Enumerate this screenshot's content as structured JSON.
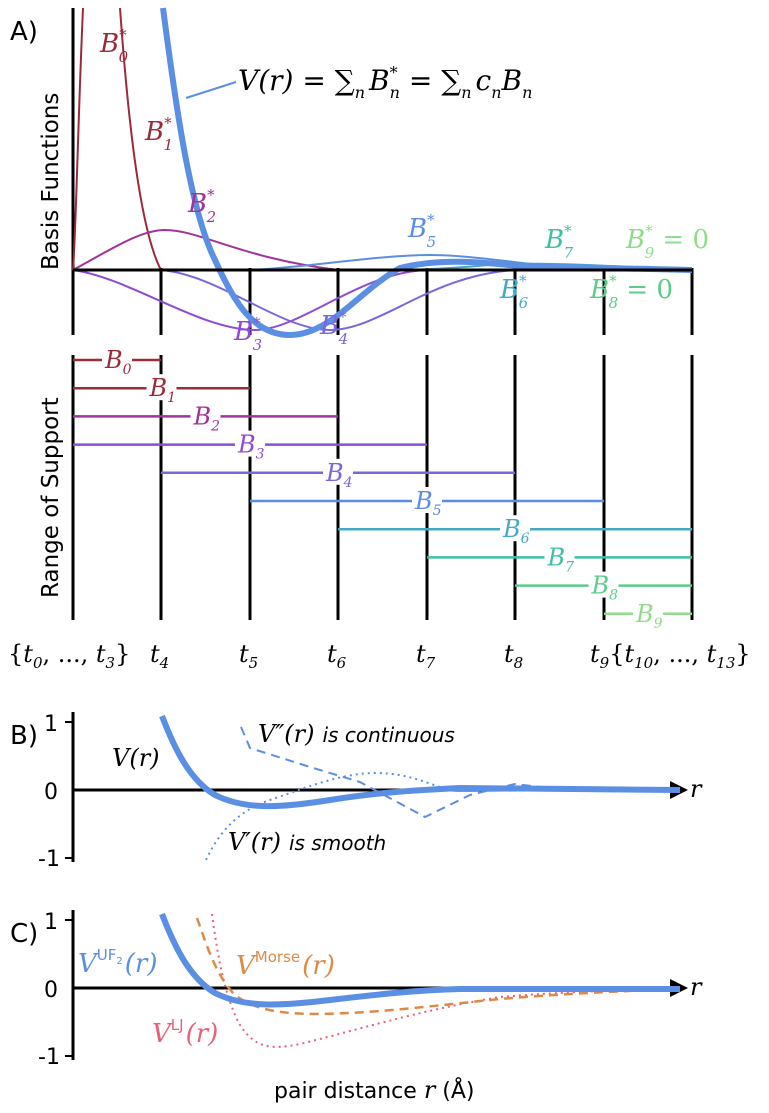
{
  "panels": {
    "a": {
      "letter": "A)",
      "y_label_top": "Basis Functions",
      "y_label_bottom": "Range of Support",
      "sum_lhs": "V(r) = ",
      "sum_sym": "∑",
      "sum_sub1": "n",
      "sum_b": "B",
      "sum_star": "*",
      "sum_n": "n",
      "sum_eq": " = ",
      "sum_sub2": "n",
      "sum_c": "c",
      "sum_cn": "n",
      "sum_B": "B",
      "sum_Bn": "n",
      "basis_labels": [
        {
          "sym": "B",
          "sup": "*",
          "sub": "0",
          "suffix": "",
          "color": "#9b2a3a"
        },
        {
          "sym": "B",
          "sup": "*",
          "sub": "1",
          "suffix": "",
          "color": "#9b2a3a"
        },
        {
          "sym": "B",
          "sup": "*",
          "sub": "2",
          "suffix": "",
          "color": "#a1339a"
        },
        {
          "sym": "B",
          "sup": "*",
          "sub": "3",
          "suffix": "",
          "color": "#8e4bd6"
        },
        {
          "sym": "B",
          "sup": "*",
          "sub": "4",
          "suffix": "",
          "color": "#7a66de"
        },
        {
          "sym": "B",
          "sup": "*",
          "sub": "5",
          "suffix": "",
          "color": "#5a8ee0"
        },
        {
          "sym": "B",
          "sup": "*",
          "sub": "6",
          "suffix": "",
          "color": "#45a8c8"
        },
        {
          "sym": "B",
          "sup": "*",
          "sub": "7",
          "suffix": "",
          "color": "#3fc0a5"
        },
        {
          "sym": "B",
          "sup": "*",
          "sub": "8",
          "suffix": " = 0",
          "color": "#5ccc88"
        },
        {
          "sym": "B",
          "sup": "*",
          "sub": "9",
          "suffix": " = 0",
          "color": "#8fdc8a"
        }
      ],
      "support_labels": [
        {
          "sym": "B",
          "sub": "0",
          "color": "#9b2a3a"
        },
        {
          "sym": "B",
          "sub": "1",
          "color": "#9b2a3a"
        },
        {
          "sym": "B",
          "sub": "2",
          "color": "#a1339a"
        },
        {
          "sym": "B",
          "sub": "3",
          "color": "#8e4bd6"
        },
        {
          "sym": "B",
          "sub": "4",
          "color": "#7a66de"
        },
        {
          "sym": "B",
          "sub": "5",
          "color": "#5a8ee0"
        },
        {
          "sym": "B",
          "sub": "6",
          "color": "#45a8c8"
        },
        {
          "sym": "B",
          "sub": "7",
          "color": "#3fc0a5"
        },
        {
          "sym": "B",
          "sub": "8",
          "color": "#5ccc88"
        },
        {
          "sym": "B",
          "sub": "9",
          "color": "#8fdc8a"
        }
      ],
      "knot_labels": {
        "k0_open": "{",
        "k0_t": "t",
        "k0_sub_a": "0",
        "k0_mid": ", ..., ",
        "k0_t2": "t",
        "k0_sub_b": "3",
        "k0_close": "}",
        "k4": "4",
        "k5": "5",
        "k6": "6",
        "k7": "7",
        "k8": "8",
        "k9": "9",
        "t": "t",
        "k10_open": "{",
        "k10_sub_a": "10",
        "k10_mid": ", ..., ",
        "k10_sub_b": "13",
        "k10_close": "}"
      }
    },
    "b": {
      "letter": "B)",
      "y_ticks": [
        "1",
        "0",
        "-1"
      ],
      "v_label": "V(r)",
      "v2_label_math": "V″(r)",
      "v2_label_text": "is continuous",
      "v1_label_math": "V′(r)",
      "v1_label_text": "is smooth",
      "axis_r": "r"
    },
    "c": {
      "letter": "C)",
      "y_ticks": [
        "1",
        "0",
        "-1"
      ],
      "uf_V": "V",
      "uf_sup": "UF",
      "uf_sup_sub": "2",
      "uf_arg": "(r)",
      "morse_V": "V",
      "morse_sup": "Morse",
      "morse_arg": "(r)",
      "lj_V": "V",
      "lj_sup": "LJ",
      "lj_arg": "(r)",
      "axis_r": "r",
      "x_label": "pair distance ",
      "x_label_r": "r",
      "x_label_unit": " (Å)"
    }
  },
  "colors": {
    "blue": "#5b8fe3",
    "orange": "#dd8a48",
    "pink": "#e8607a",
    "black": "#000000"
  }
}
